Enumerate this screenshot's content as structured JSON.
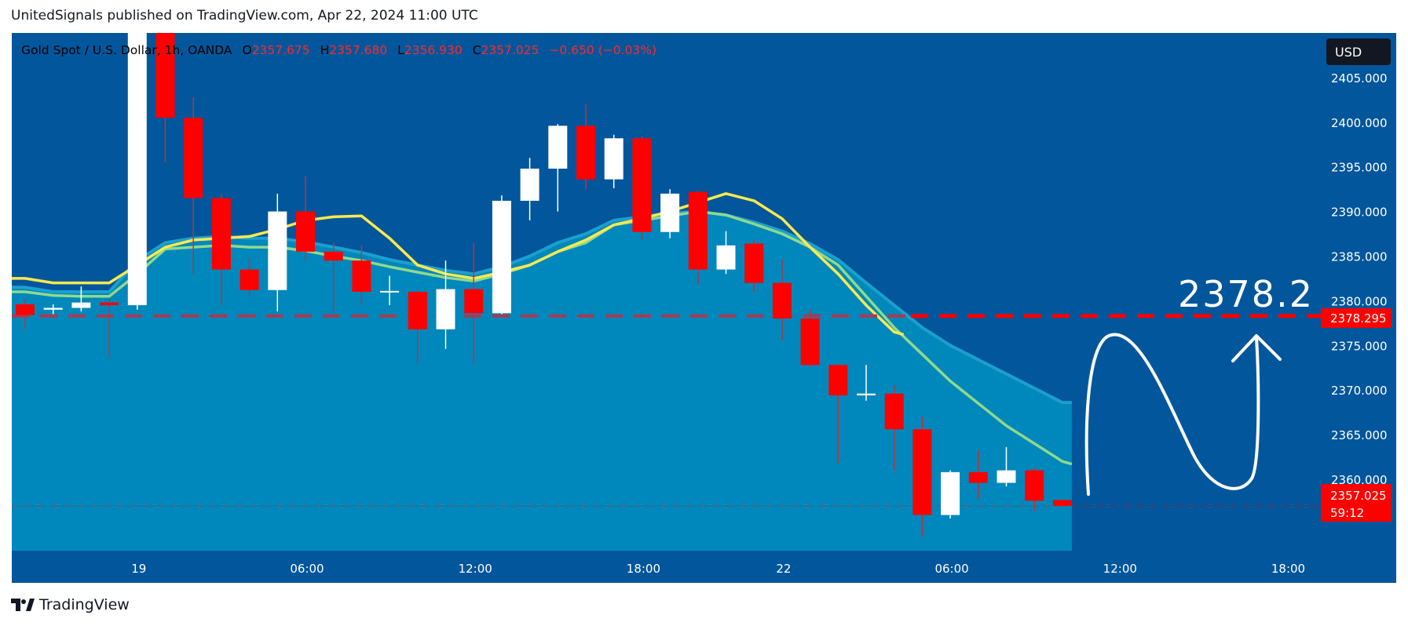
{
  "header": {
    "text": "UnitedSignals published on TradingView.com, Apr 22, 2024 11:00 UTC"
  },
  "legend": {
    "symbol": "Gold Spot / U.S. Dollar, 1h, OANDA",
    "open_label": "O",
    "open": "2357.675",
    "high_label": "H",
    "high": "2357.680",
    "low_label": "L",
    "low": "2356.930",
    "close_label": "C",
    "close": "2357.025",
    "change": "−0.650 (−0.03%)"
  },
  "currency_button": "USD",
  "price_label": {
    "value": "2357.025",
    "countdown": "59:12"
  },
  "target_label": "2378.295",
  "annotation": "2378.2",
  "footer": {
    "brand": "TradingView"
  },
  "colors": {
    "plot_bg": "#02569b",
    "area": "#0087bb",
    "up": "#ffffff",
    "down": "#ff0000",
    "ma_yellow": "#fce94f",
    "ma_green": "#8fd98d"
  },
  "chart_data": {
    "type": "candlestick",
    "timeframe": "1h",
    "y_range": [
      2352,
      2410
    ],
    "y_ticks": [
      2360,
      2365,
      2370,
      2375,
      2380,
      2385,
      2390,
      2395,
      2400,
      2405
    ],
    "y_tick_labels": [
      "2360.000",
      "2365.000",
      "2370.000",
      "2375.000",
      "2380.000",
      "2385.000",
      "2390.000",
      "2395.000",
      "2400.000",
      "2405.000"
    ],
    "x_ticks": [
      {
        "label": "19",
        "index": 4
      },
      {
        "label": "06:00",
        "index": 10
      },
      {
        "label": "12:00",
        "index": 16
      },
      {
        "label": "18:00",
        "index": 22
      },
      {
        "label": "22",
        "index": 27
      },
      {
        "label": "06:00",
        "index": 33
      },
      {
        "label": "12:00",
        "index": 39
      },
      {
        "label": "18:00",
        "index": 45
      }
    ],
    "candles": [
      {
        "o": 2379.6,
        "h": 2380.2,
        "l": 2376.8,
        "c": 2378.4
      },
      {
        "o": 2379.0,
        "h": 2379.6,
        "l": 2378.5,
        "c": 2379.2
      },
      {
        "o": 2379.2,
        "h": 2381.6,
        "l": 2378.8,
        "c": 2379.8
      },
      {
        "o": 2379.8,
        "h": 2380.2,
        "l": 2373.6,
        "c": 2379.5
      },
      {
        "o": 2379.5,
        "h": 2411.0,
        "l": 2379.0,
        "c": 2410.0
      },
      {
        "o": 2410.0,
        "h": 2412.0,
        "l": 2395.5,
        "c": 2400.5
      },
      {
        "o": 2400.5,
        "h": 2402.8,
        "l": 2383.0,
        "c": 2391.5
      },
      {
        "o": 2391.5,
        "h": 2392.0,
        "l": 2379.5,
        "c": 2383.5
      },
      {
        "o": 2383.5,
        "h": 2384.8,
        "l": 2380.5,
        "c": 2381.2
      },
      {
        "o": 2381.2,
        "h": 2392.0,
        "l": 2378.8,
        "c": 2390.0
      },
      {
        "o": 2390.0,
        "h": 2394.0,
        "l": 2384.5,
        "c": 2385.5
      },
      {
        "o": 2385.5,
        "h": 2386.5,
        "l": 2378.8,
        "c": 2384.5
      },
      {
        "o": 2384.5,
        "h": 2386.2,
        "l": 2379.5,
        "c": 2381.0
      },
      {
        "o": 2381.0,
        "h": 2382.8,
        "l": 2379.5,
        "c": 2381.1
      },
      {
        "o": 2381.0,
        "h": 2381.3,
        "l": 2373.0,
        "c": 2376.8
      },
      {
        "o": 2376.8,
        "h": 2384.5,
        "l": 2374.6,
        "c": 2381.3
      },
      {
        "o": 2381.3,
        "h": 2386.5,
        "l": 2373.0,
        "c": 2378.6
      },
      {
        "o": 2378.6,
        "h": 2391.8,
        "l": 2378.5,
        "c": 2391.2
      },
      {
        "o": 2391.2,
        "h": 2396.0,
        "l": 2389.0,
        "c": 2394.8
      },
      {
        "o": 2394.8,
        "h": 2399.8,
        "l": 2390.0,
        "c": 2399.6
      },
      {
        "o": 2399.6,
        "h": 2402.0,
        "l": 2392.5,
        "c": 2393.6
      },
      {
        "o": 2393.6,
        "h": 2398.6,
        "l": 2392.6,
        "c": 2398.2
      },
      {
        "o": 2398.2,
        "h": 2398.4,
        "l": 2386.8,
        "c": 2387.7
      },
      {
        "o": 2387.7,
        "h": 2392.5,
        "l": 2387.0,
        "c": 2392.0
      },
      {
        "o": 2392.2,
        "h": 2392.3,
        "l": 2381.8,
        "c": 2383.5
      },
      {
        "o": 2383.5,
        "h": 2387.8,
        "l": 2383.0,
        "c": 2386.2
      },
      {
        "o": 2386.4,
        "h": 2386.8,
        "l": 2381.0,
        "c": 2382.0
      },
      {
        "o": 2382.0,
        "h": 2384.6,
        "l": 2375.6,
        "c": 2378.0
      },
      {
        "o": 2378.0,
        "h": 2379.0,
        "l": 2372.6,
        "c": 2372.8
      },
      {
        "o": 2372.8,
        "h": 2372.9,
        "l": 2361.8,
        "c": 2369.4
      },
      {
        "o": 2369.4,
        "h": 2372.8,
        "l": 2368.8,
        "c": 2369.6
      },
      {
        "o": 2369.6,
        "h": 2370.5,
        "l": 2361.0,
        "c": 2365.6
      },
      {
        "o": 2365.6,
        "h": 2367.0,
        "l": 2353.6,
        "c": 2356.0
      },
      {
        "o": 2356.0,
        "h": 2361.0,
        "l": 2355.6,
        "c": 2360.8
      },
      {
        "o": 2360.8,
        "h": 2363.2,
        "l": 2357.8,
        "c": 2359.6
      },
      {
        "o": 2359.6,
        "h": 2363.6,
        "l": 2359.2,
        "c": 2361.0
      },
      {
        "o": 2361.0,
        "h": 2361.3,
        "l": 2356.4,
        "c": 2357.6
      },
      {
        "o": 2357.675,
        "h": 2357.68,
        "l": 2356.93,
        "c": 2357.025
      }
    ],
    "ma_yellow": [
      2382.5,
      2382.0,
      2382.0,
      2382.0,
      2384.0,
      2386.0,
      2386.8,
      2387.0,
      2387.2,
      2388.0,
      2389.0,
      2389.4,
      2389.5,
      2387.0,
      2384.0,
      2383.0,
      2382.5,
      2383.2,
      2384.0,
      2385.5,
      2386.8,
      2388.5,
      2389.2,
      2390.0,
      2391.0,
      2392.0,
      2391.2,
      2389.2,
      2386.0,
      2383.0,
      2379.5,
      2376.5
    ],
    "ma_green": [
      2381.0,
      2380.6,
      2380.5,
      2380.5,
      2383.0,
      2385.8,
      2386.0,
      2386.2,
      2386.0,
      2386.0,
      2385.6,
      2385.0,
      2384.5,
      2383.8,
      2383.2,
      2382.6,
      2382.2,
      2383.0,
      2384.0,
      2385.5,
      2386.5,
      2388.5,
      2389.0,
      2389.5,
      2390.0,
      2389.6,
      2388.6,
      2387.5,
      2386.0,
      2384.0,
      2380.5,
      2377.0,
      2374.0,
      2371.0,
      2368.5,
      2366.0,
      2364.0,
      2362.0
    ],
    "area_top": [
      2381.5,
      2381.0,
      2381.0,
      2381.0,
      2384.5,
      2386.5,
      2387.0,
      2387.2,
      2387.0,
      2387.0,
      2386.6,
      2386.0,
      2385.4,
      2384.6,
      2384.0,
      2383.4,
      2383.0,
      2383.8,
      2385.0,
      2386.5,
      2387.5,
      2389.0,
      2389.4,
      2389.8,
      2390.0,
      2389.6,
      2388.8,
      2387.8,
      2386.4,
      2384.6,
      2382.0,
      2379.5,
      2377.0,
      2375.0,
      2373.4,
      2371.8,
      2370.2,
      2368.6
    ],
    "horizontal_line": 2378.295,
    "current_price": 2357.025
  }
}
